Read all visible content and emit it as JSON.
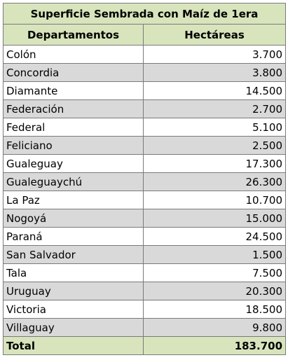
{
  "table": {
    "title": "Superficie Sembrada con Maíz de 1era",
    "headers": [
      "Departamentos",
      "Hectáreas"
    ],
    "rows": [
      {
        "departamento": "Colón",
        "hectareas": "3.700"
      },
      {
        "departamento": "Concordia",
        "hectareas": "3.800"
      },
      {
        "departamento": "Diamante",
        "hectareas": "14.500"
      },
      {
        "departamento": "Federación",
        "hectareas": "2.700"
      },
      {
        "departamento": "Federal",
        "hectareas": "5.100"
      },
      {
        "departamento": "Feliciano",
        "hectareas": "2.500"
      },
      {
        "departamento": "Gualeguay",
        "hectareas": "17.300"
      },
      {
        "departamento": "Gualeguaychú",
        "hectareas": "26.300"
      },
      {
        "departamento": "La Paz",
        "hectareas": "10.700"
      },
      {
        "departamento": "Nogoyá",
        "hectareas": "15.000"
      },
      {
        "departamento": "Paraná",
        "hectareas": "24.500"
      },
      {
        "departamento": "San Salvador",
        "hectareas": "1.500"
      },
      {
        "departamento": "Tala",
        "hectareas": "7.500"
      },
      {
        "departamento": "Uruguay",
        "hectareas": "20.300"
      },
      {
        "departamento": "Victoria",
        "hectareas": "18.500"
      },
      {
        "departamento": "Villaguay",
        "hectareas": "9.800"
      }
    ],
    "total": {
      "label": "Total",
      "value": "183.700"
    },
    "colors": {
      "header_bg": "#d8e4bc",
      "alt_row_bg": "#d9d9d9",
      "border": "#7a7a7a"
    }
  }
}
